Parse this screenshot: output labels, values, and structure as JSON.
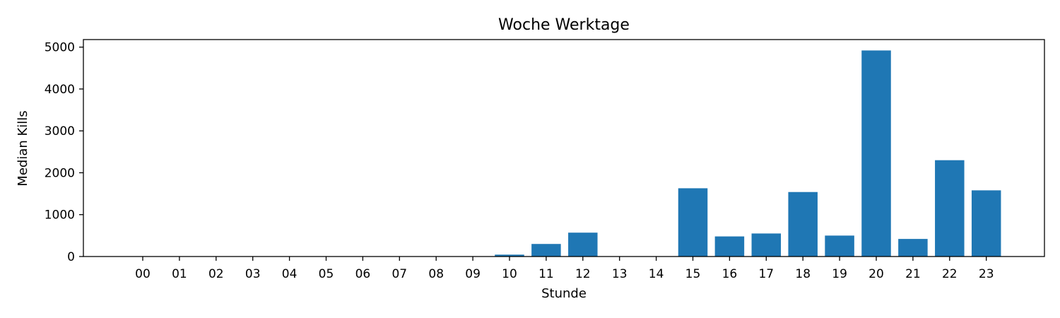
{
  "chart_data": {
    "type": "bar",
    "title": "Woche Werktage",
    "xlabel": "Stunde",
    "ylabel": "Median Kills",
    "categories": [
      "00",
      "01",
      "02",
      "03",
      "04",
      "05",
      "06",
      "07",
      "08",
      "09",
      "10",
      "11",
      "12",
      "13",
      "14",
      "15",
      "16",
      "17",
      "18",
      "19",
      "20",
      "21",
      "22",
      "23"
    ],
    "values": [
      0,
      0,
      0,
      0,
      0,
      0,
      0,
      0,
      0,
      0,
      45,
      300,
      570,
      0,
      0,
      1630,
      480,
      550,
      1540,
      500,
      4920,
      420,
      2300,
      1580
    ],
    "ylim": [
      0,
      5180
    ],
    "yticks": [
      0,
      1000,
      2000,
      3000,
      4000,
      5000
    ],
    "bar_color": "#1f77b4",
    "grid": false,
    "legend": "none"
  }
}
